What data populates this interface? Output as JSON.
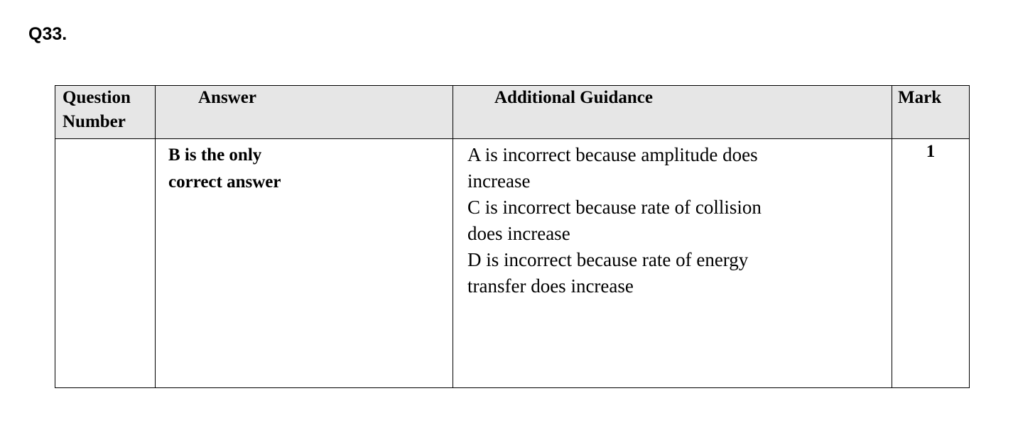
{
  "question_label": "Q33.",
  "table": {
    "headers": [
      "Question Number",
      "Answer",
      "Additional Guidance",
      "Mark"
    ],
    "header_lines": {
      "question_number": [
        "Question",
        "Number"
      ]
    },
    "rows": [
      {
        "question_number": "",
        "answer_lines": [
          "B is the only",
          "correct answer"
        ],
        "guidance_lines": [
          "A is incorrect because amplitude does",
          "increase",
          "C is incorrect because rate of collision",
          "does increase",
          "D is incorrect because rate of energy",
          "transfer does increase"
        ],
        "mark": "1"
      }
    ]
  },
  "colors": {
    "header_background": "#e6e6e6",
    "border": "#000000"
  }
}
